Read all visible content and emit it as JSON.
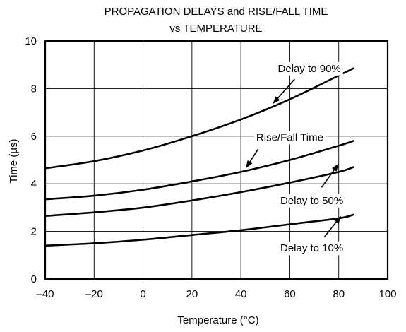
{
  "chart_data": {
    "type": "line",
    "title": [
      "PROPAGATION DELAYS and RISE/FALL TIME",
      "vs TEMPERATURE"
    ],
    "xlabel": "Temperature (°C)",
    "ylabel": "Time (µs)",
    "xlim": [
      -40,
      100
    ],
    "ylim": [
      0,
      10
    ],
    "xticks": [
      -40,
      -20,
      0,
      20,
      40,
      60,
      80,
      100
    ],
    "xtick_labels": [
      "–40",
      "–20",
      "0",
      "20",
      "40",
      "60",
      "80",
      "100"
    ],
    "yticks": [
      0,
      2,
      4,
      6,
      8,
      10
    ],
    "ytick_labels": [
      "0",
      "2",
      "4",
      "6",
      "8",
      "10"
    ],
    "grid": true,
    "series": [
      {
        "name": "Delay to 90%",
        "x": [
          -40,
          -20,
          0,
          20,
          40,
          60,
          80,
          86
        ],
        "y": [
          4.65,
          4.95,
          5.4,
          6.0,
          6.7,
          7.55,
          8.55,
          8.85
        ]
      },
      {
        "name": "Rise/Fall Time",
        "x": [
          -40,
          -20,
          0,
          20,
          40,
          60,
          80,
          86
        ],
        "y": [
          3.35,
          3.5,
          3.75,
          4.1,
          4.5,
          5.0,
          5.6,
          5.8
        ]
      },
      {
        "name": "Delay to 50%",
        "x": [
          -40,
          -20,
          0,
          20,
          40,
          60,
          80,
          86
        ],
        "y": [
          2.65,
          2.8,
          3.0,
          3.3,
          3.65,
          4.05,
          4.5,
          4.7
        ]
      },
      {
        "name": "Delay to 10%",
        "x": [
          -40,
          -20,
          0,
          20,
          40,
          60,
          80,
          86
        ],
        "y": [
          1.4,
          1.5,
          1.65,
          1.85,
          2.05,
          2.3,
          2.55,
          2.7
        ]
      }
    ],
    "annotations": [
      {
        "text": "Delay to 90%",
        "label_x": 68,
        "label_y": 8.85,
        "arrow_from": [
          62,
          8.4
        ],
        "arrow_to": [
          53,
          7.35
        ]
      },
      {
        "text": "Rise/Fall Time",
        "label_x": 60,
        "label_y": 5.95,
        "arrow_from": [
          47,
          5.45
        ],
        "arrow_to": [
          42,
          4.65
        ]
      },
      {
        "text": "Delay to 50%",
        "label_x": 69,
        "label_y": 3.3,
        "arrow_from": [
          73,
          3.85
        ],
        "arrow_to": [
          80,
          4.85
        ]
      },
      {
        "text": "Delay to 10%",
        "label_x": 69,
        "label_y": 1.3,
        "arrow_from": [
          74,
          1.75
        ],
        "arrow_to": [
          81,
          2.65
        ]
      }
    ]
  }
}
